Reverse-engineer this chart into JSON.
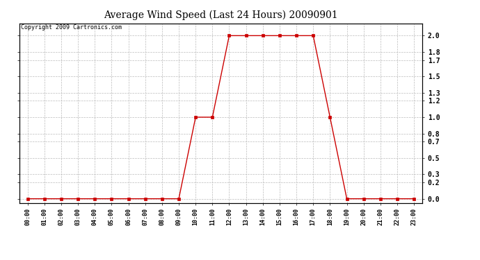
{
  "title": "Average Wind Speed (Last 24 Hours) 20090901",
  "copyright_text": "Copyright 2009 Cartronics.com",
  "hours": [
    0,
    1,
    2,
    3,
    4,
    5,
    6,
    7,
    8,
    9,
    10,
    11,
    12,
    13,
    14,
    15,
    16,
    17,
    18,
    19,
    20,
    21,
    22,
    23
  ],
  "values": [
    0,
    0,
    0,
    0,
    0,
    0,
    0,
    0,
    0,
    0,
    1.0,
    1.0,
    2.0,
    2.0,
    2.0,
    2.0,
    2.0,
    2.0,
    1.0,
    0,
    0,
    0,
    0,
    0
  ],
  "line_color": "#cc0000",
  "marker": "s",
  "marker_size": 2.5,
  "background_color": "#ffffff",
  "grid_color": "#bbbbbb",
  "yticks": [
    0.0,
    0.2,
    0.3,
    0.5,
    0.7,
    0.8,
    1.0,
    1.2,
    1.3,
    1.5,
    1.7,
    1.8,
    2.0
  ],
  "ylim": [
    -0.05,
    2.15
  ],
  "xlim": [
    -0.5,
    23.5
  ],
  "title_fontsize": 10,
  "tick_fontsize": 7,
  "xlabel_fontsize": 6,
  "copyright_fontsize": 6
}
